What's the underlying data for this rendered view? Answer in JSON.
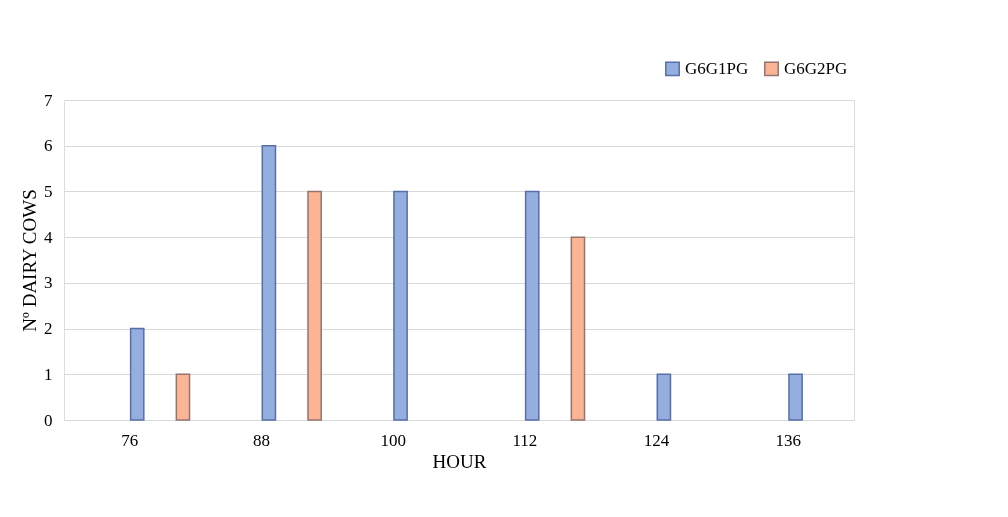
{
  "chart_data": {
    "type": "bar",
    "xlabel": "HOUR",
    "ylabel": "Nº DAIRY COWS",
    "categories": [
      "76",
      "88",
      "100",
      "112",
      "124",
      "136"
    ],
    "series": [
      {
        "name": "G6G1PG",
        "color": "#94aee0",
        "values": [
          2,
          6,
          5,
          5,
          1,
          1
        ]
      },
      {
        "name": "G6G2PG",
        "color": "#fbb594",
        "values": [
          1,
          5,
          0,
          4,
          0,
          0
        ]
      }
    ],
    "ylim": [
      0,
      7
    ],
    "yticks": [
      0,
      1,
      2,
      3,
      4,
      5,
      6,
      7
    ],
    "grid": "y",
    "legend": "top right"
  }
}
